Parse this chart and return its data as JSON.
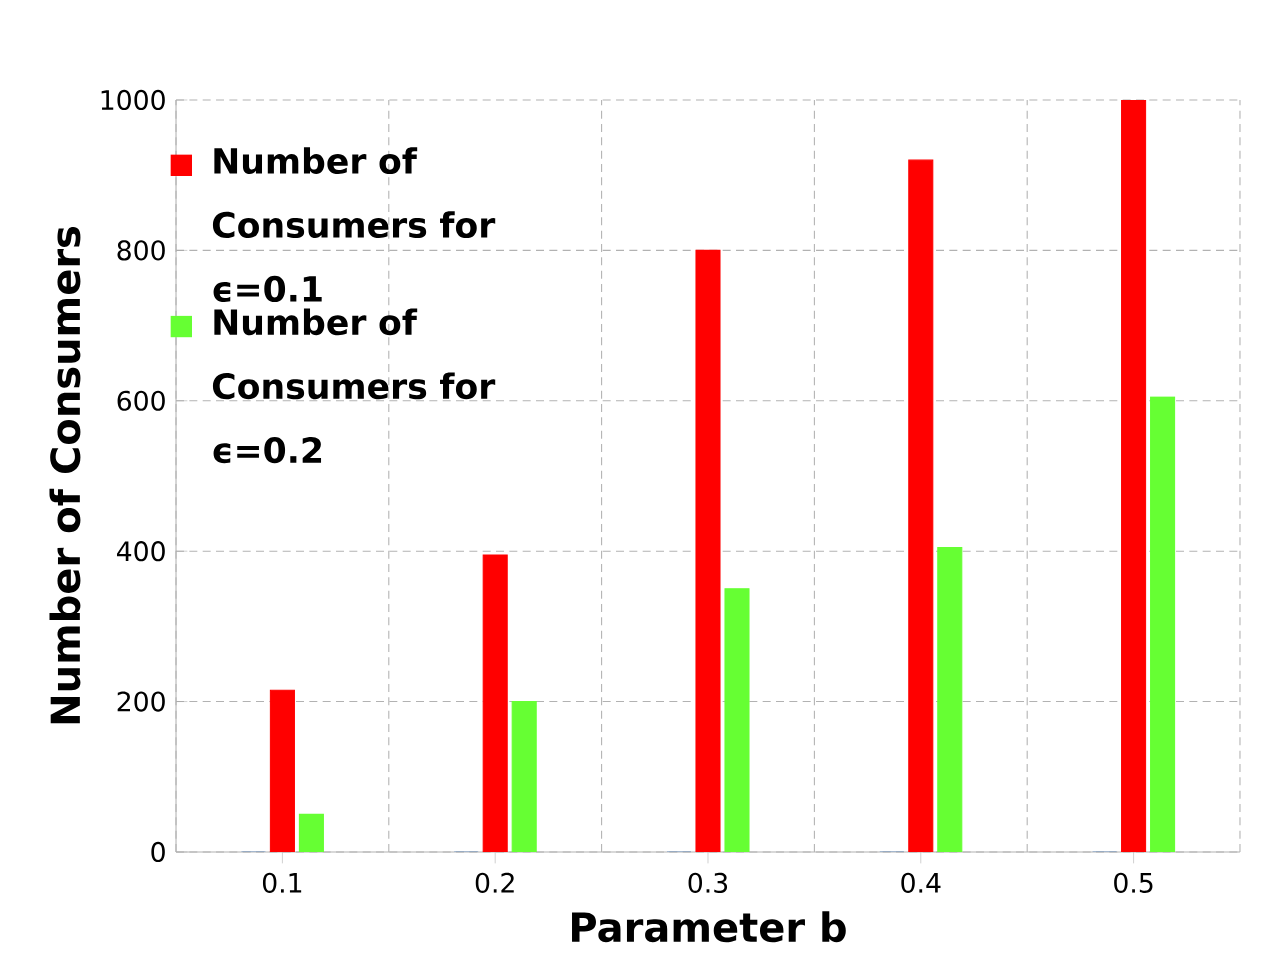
{
  "chart_data": {
    "type": "bar",
    "xlabel": "Parameter b",
    "ylabel": "Number of Consumers",
    "categories": [
      "0.1",
      "0.2",
      "0.3",
      "0.4",
      "0.5"
    ],
    "series": [
      {
        "color": "#4f81bd",
        "values": [
          0,
          0,
          0,
          0,
          0
        ]
      },
      {
        "name": "Number of Consumers for ϵ=0.1",
        "color": "#ff0000",
        "values": [
          215,
          395,
          800,
          920,
          1000
        ]
      },
      {
        "name": "Number of Consumers for ϵ=0.2",
        "color": "#66ff33",
        "values": [
          50,
          200,
          350,
          405,
          605
        ]
      }
    ],
    "ylim": [
      0,
      1000
    ],
    "yticks": [
      0,
      200,
      400,
      600,
      800,
      1000
    ],
    "grid": true,
    "legend": "top left"
  }
}
